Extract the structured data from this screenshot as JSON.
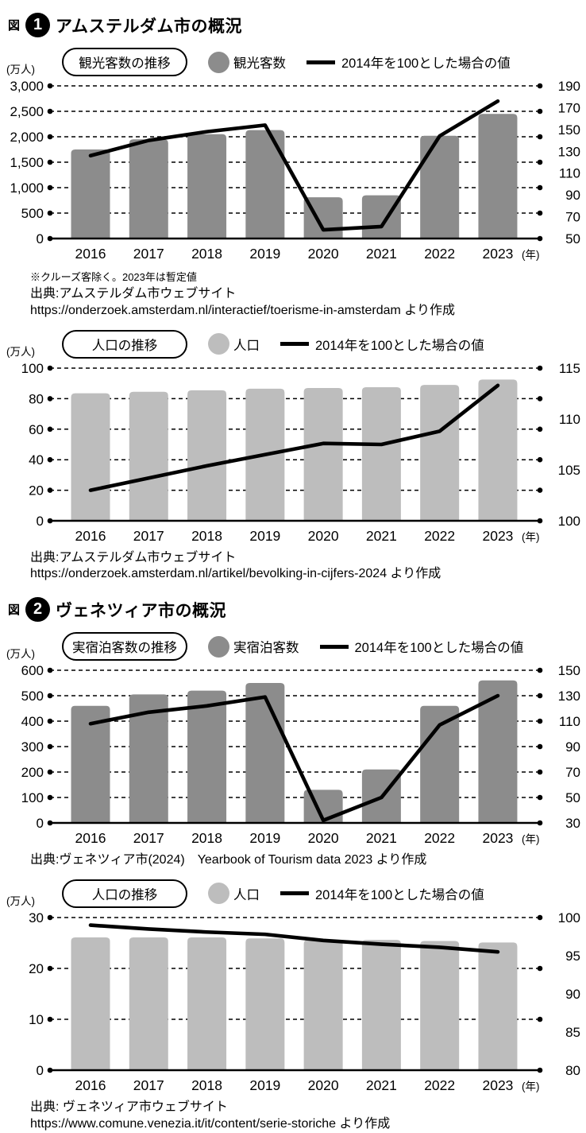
{
  "figure1": {
    "fig_word": "図",
    "number": "1",
    "title": "アムステルダム市の概況",
    "note": "※クルーズ客除く。2023年は暫定値",
    "source1_line1": "出典:アムステルダム市ウェブサイト",
    "source1_line2": "https://onderzoek.amsterdam.nl/interactief/toerisme-in-amsterdam より作成",
    "source2_line1": "出典:アムステルダム市ウェブサイト",
    "source2_line2": "https://onderzoek.amsterdam.nl/artikel/bevolking-in-cijfers-2024 より作成"
  },
  "figure2": {
    "fig_word": "図",
    "number": "2",
    "title": "ヴェネツィア市の概況",
    "source1_line1": "出典:ヴェネツィア市(2024)　Yearbook of Tourism data 2023 より作成",
    "source2_line1": "出典: ヴェネツィア市ウェブサイト",
    "source2_line2": "https://www.comune.venezia.it/it/content/serie-storiche より作成"
  },
  "chart_data": [
    {
      "type": "bar+line",
      "title": "観光客数の推移",
      "unit_label": "(万人)",
      "pill_label": "観光客数の推移",
      "bar_legend": "観光客数",
      "line_legend": "2014年を100とした場合の値",
      "bar_color": "#8c8c8c",
      "line_color": "#000000",
      "categories": [
        "2016",
        "2017",
        "2018",
        "2019",
        "2020",
        "2021",
        "2022",
        "2023"
      ],
      "x_suffix": "(年)",
      "left_axis": {
        "min": 0,
        "max": 3000,
        "ticks": [
          0,
          500,
          1000,
          1500,
          2000,
          2500,
          3000
        ],
        "tick_labels": [
          "0",
          "500",
          "1,000",
          "1,500",
          "2,000",
          "2,500",
          "3,000"
        ]
      },
      "right_axis": {
        "min": 50,
        "max": 190,
        "tick_values": [
          50,
          70,
          90,
          110,
          130,
          150,
          170,
          190
        ],
        "tick_labels": [
          "50",
          "70",
          "90",
          "110",
          "130",
          "150",
          "170",
          "190"
        ]
      },
      "bars": [
        1750,
        1950,
        2050,
        2130,
        810,
        850,
        2020,
        2450
      ],
      "line": [
        126,
        140,
        148,
        154,
        58,
        61,
        144,
        176
      ]
    },
    {
      "type": "bar+line",
      "title": "人口の推移",
      "unit_label": "(万人)",
      "pill_label": "人口の推移",
      "bar_legend": "人口",
      "line_legend": "2014年を100とした場合の値",
      "bar_color": "#bdbdbd",
      "line_color": "#000000",
      "categories": [
        "2016",
        "2017",
        "2018",
        "2019",
        "2020",
        "2021",
        "2022",
        "2023"
      ],
      "x_suffix": "(年)",
      "left_axis": {
        "min": 0,
        "max": 100,
        "ticks": [
          0,
          20,
          40,
          60,
          80,
          100
        ],
        "tick_labels": [
          "0",
          "20",
          "40",
          "60",
          "80",
          "100"
        ]
      },
      "right_axis": {
        "min": 100,
        "max": 115,
        "tick_values": [
          100,
          105,
          110,
          115
        ],
        "tick_labels": [
          "100",
          "105",
          "110",
          "115"
        ]
      },
      "bars": [
        83.5,
        84.5,
        85.5,
        86.5,
        87,
        87.5,
        89,
        92.5
      ],
      "line": [
        103,
        104.2,
        105.4,
        106.5,
        107.6,
        107.5,
        108.8,
        113.3
      ]
    },
    {
      "type": "bar+line",
      "title": "実宿泊客数の推移",
      "unit_label": "(万人)",
      "pill_label": "実宿泊客数の推移",
      "bar_legend": "実宿泊客数",
      "line_legend": "2014年を100とした場合の値",
      "bar_color": "#8c8c8c",
      "line_color": "#000000",
      "categories": [
        "2016",
        "2017",
        "2018",
        "2019",
        "2020",
        "2021",
        "2022",
        "2023"
      ],
      "x_suffix": "(年)",
      "left_axis": {
        "min": 0,
        "max": 600,
        "ticks": [
          0,
          100,
          200,
          300,
          400,
          500,
          600
        ],
        "tick_labels": [
          "0",
          "100",
          "200",
          "300",
          "400",
          "500",
          "600"
        ]
      },
      "right_axis": {
        "min": 30,
        "max": 150,
        "tick_values": [
          30,
          50,
          70,
          90,
          110,
          130,
          150
        ],
        "tick_labels": [
          "30",
          "50",
          "70",
          "90",
          "110",
          "130",
          "150"
        ]
      },
      "bars": [
        460,
        505,
        520,
        550,
        130,
        210,
        460,
        560
      ],
      "line": [
        108,
        117,
        122,
        129,
        32,
        50,
        107,
        130
      ]
    },
    {
      "type": "bar+line",
      "title": "人口の推移",
      "unit_label": "(万人)",
      "pill_label": "人口の推移",
      "bar_legend": "人口",
      "line_legend": "2014年を100とした場合の値",
      "bar_color": "#bdbdbd",
      "line_color": "#000000",
      "categories": [
        "2016",
        "2017",
        "2018",
        "2019",
        "2020",
        "2021",
        "2022",
        "2023"
      ],
      "x_suffix": "(年)",
      "left_axis": {
        "min": 0,
        "max": 30,
        "ticks": [
          0,
          10,
          20,
          30
        ],
        "tick_labels": [
          "0",
          "10",
          "20",
          "30"
        ]
      },
      "right_axis": {
        "min": 80,
        "max": 100,
        "tick_values": [
          80,
          85,
          90,
          95,
          100
        ],
        "tick_labels": [
          "80",
          "85",
          "90",
          "95",
          "100"
        ]
      },
      "bars": [
        26.1,
        26.1,
        26.1,
        25.9,
        25.6,
        25.6,
        25.4,
        25.1
      ],
      "line": [
        99,
        98.5,
        98.1,
        97.8,
        97,
        96.5,
        96.1,
        95.5
      ]
    }
  ]
}
